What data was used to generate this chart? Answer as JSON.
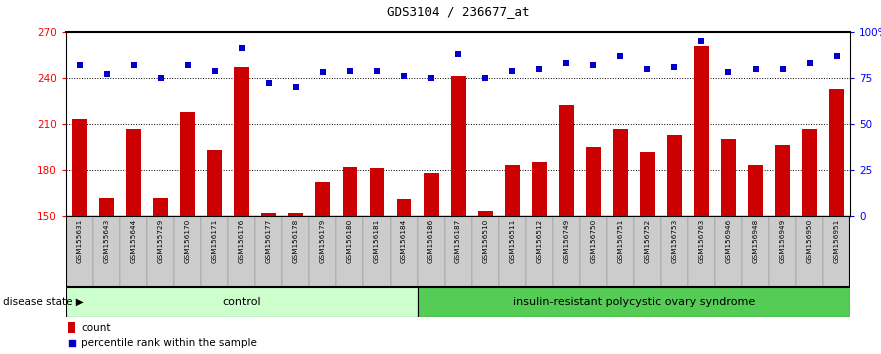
{
  "title": "GDS3104 / 236677_at",
  "samples": [
    "GSM155631",
    "GSM155643",
    "GSM155644",
    "GSM155729",
    "GSM156170",
    "GSM156171",
    "GSM156176",
    "GSM156177",
    "GSM156178",
    "GSM156179",
    "GSM156180",
    "GSM156181",
    "GSM156184",
    "GSM156186",
    "GSM156187",
    "GSM156510",
    "GSM156511",
    "GSM156512",
    "GSM156749",
    "GSM156750",
    "GSM156751",
    "GSM156752",
    "GSM156753",
    "GSM156763",
    "GSM156946",
    "GSM156948",
    "GSM156949",
    "GSM156950",
    "GSM156951"
  ],
  "counts": [
    213,
    162,
    207,
    162,
    218,
    193,
    247,
    152,
    152,
    172,
    182,
    181,
    161,
    178,
    241,
    153,
    183,
    185,
    222,
    195,
    207,
    192,
    203,
    261,
    200,
    183,
    196,
    207,
    233
  ],
  "percentiles": [
    82,
    77,
    82,
    75,
    82,
    79,
    91,
    72,
    70,
    78,
    79,
    79,
    76,
    75,
    88,
    75,
    79,
    80,
    83,
    82,
    87,
    80,
    81,
    95,
    78,
    80,
    80,
    83,
    87
  ],
  "control_count": 13,
  "disease_label": "insulin-resistant polycystic ovary syndrome",
  "control_label": "control",
  "disease_state_label": "disease state",
  "ylim_left": [
    150,
    270
  ],
  "ylim_right": [
    0,
    100
  ],
  "yticks_left": [
    150,
    180,
    210,
    240,
    270
  ],
  "yticks_right": [
    0,
    25,
    50,
    75,
    100
  ],
  "bar_color": "#CC0000",
  "dot_color": "#0000CC",
  "control_bg": "#CCFFCC",
  "disease_bg": "#55CC55",
  "sample_bg": "#CCCCCC",
  "legend_count_label": "count",
  "legend_pct_label": "percentile rank within the sample",
  "grid_yvals": [
    180,
    210,
    240
  ]
}
